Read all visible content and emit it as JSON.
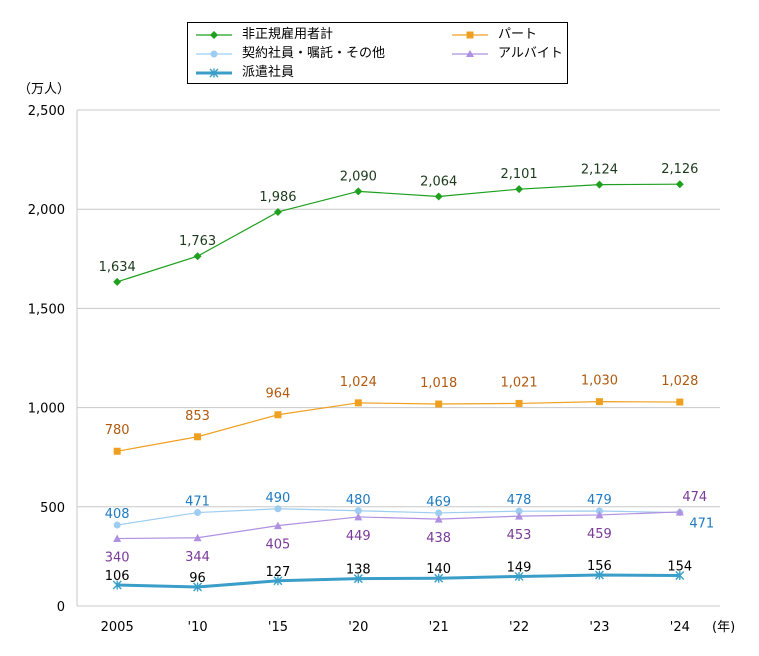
{
  "chart_data": {
    "type": "line",
    "categories": [
      "2005",
      "'10",
      "'15",
      "'20",
      "'21",
      "'22",
      "'23",
      "'24"
    ],
    "y_unit": "（万人）",
    "x_unit": "(年)",
    "ylim": [
      0,
      2500
    ],
    "yticks": [
      0,
      500,
      1000,
      1500,
      2000,
      2500
    ],
    "ytick_labels": [
      "0",
      "500",
      "1,000",
      "1,500",
      "2,000",
      "2,500"
    ],
    "grid": true,
    "series": [
      {
        "name": "非正規雇用者計",
        "color": "#1ea01e",
        "marker": "diamond",
        "values": [
          1634,
          1763,
          1986,
          2090,
          2064,
          2101,
          2124,
          2126
        ],
        "labels": [
          "1,634",
          "1,763",
          "1,986",
          "2,090",
          "2,064",
          "2,101",
          "2,124",
          "2,126"
        ],
        "label_color": "#1b3b1b"
      },
      {
        "name": "パート",
        "color": "#f0a020",
        "marker": "square",
        "values": [
          780,
          853,
          964,
          1024,
          1018,
          1021,
          1030,
          1028
        ],
        "labels": [
          "780",
          "853",
          "964",
          "1,024",
          "1,018",
          "1,021",
          "1,030",
          "1,028"
        ],
        "label_color": "#b05a10"
      },
      {
        "name": "契約社員・嘱託・その他",
        "color": "#9dcdf0",
        "marker": "circle",
        "values": [
          408,
          471,
          490,
          480,
          469,
          478,
          479,
          471
        ],
        "labels": [
          "408",
          "471",
          "490",
          "480",
          "469",
          "478",
          "479",
          "471"
        ],
        "label_color": "#1f7ac0"
      },
      {
        "name": "アルバイト",
        "color": "#b090e0",
        "marker": "triangle",
        "values": [
          340,
          344,
          405,
          449,
          438,
          453,
          459,
          474
        ],
        "labels": [
          "340",
          "344",
          "405",
          "449",
          "438",
          "453",
          "459",
          "474"
        ],
        "label_color": "#7a3a9a"
      },
      {
        "name": "派遣社員",
        "color": "#3a9ec8",
        "marker": "star",
        "values": [
          106,
          96,
          127,
          138,
          140,
          149,
          156,
          154
        ],
        "labels": [
          "106",
          "96",
          "127",
          "138",
          "140",
          "149",
          "156",
          "154"
        ],
        "label_color": "#000000"
      }
    ]
  }
}
